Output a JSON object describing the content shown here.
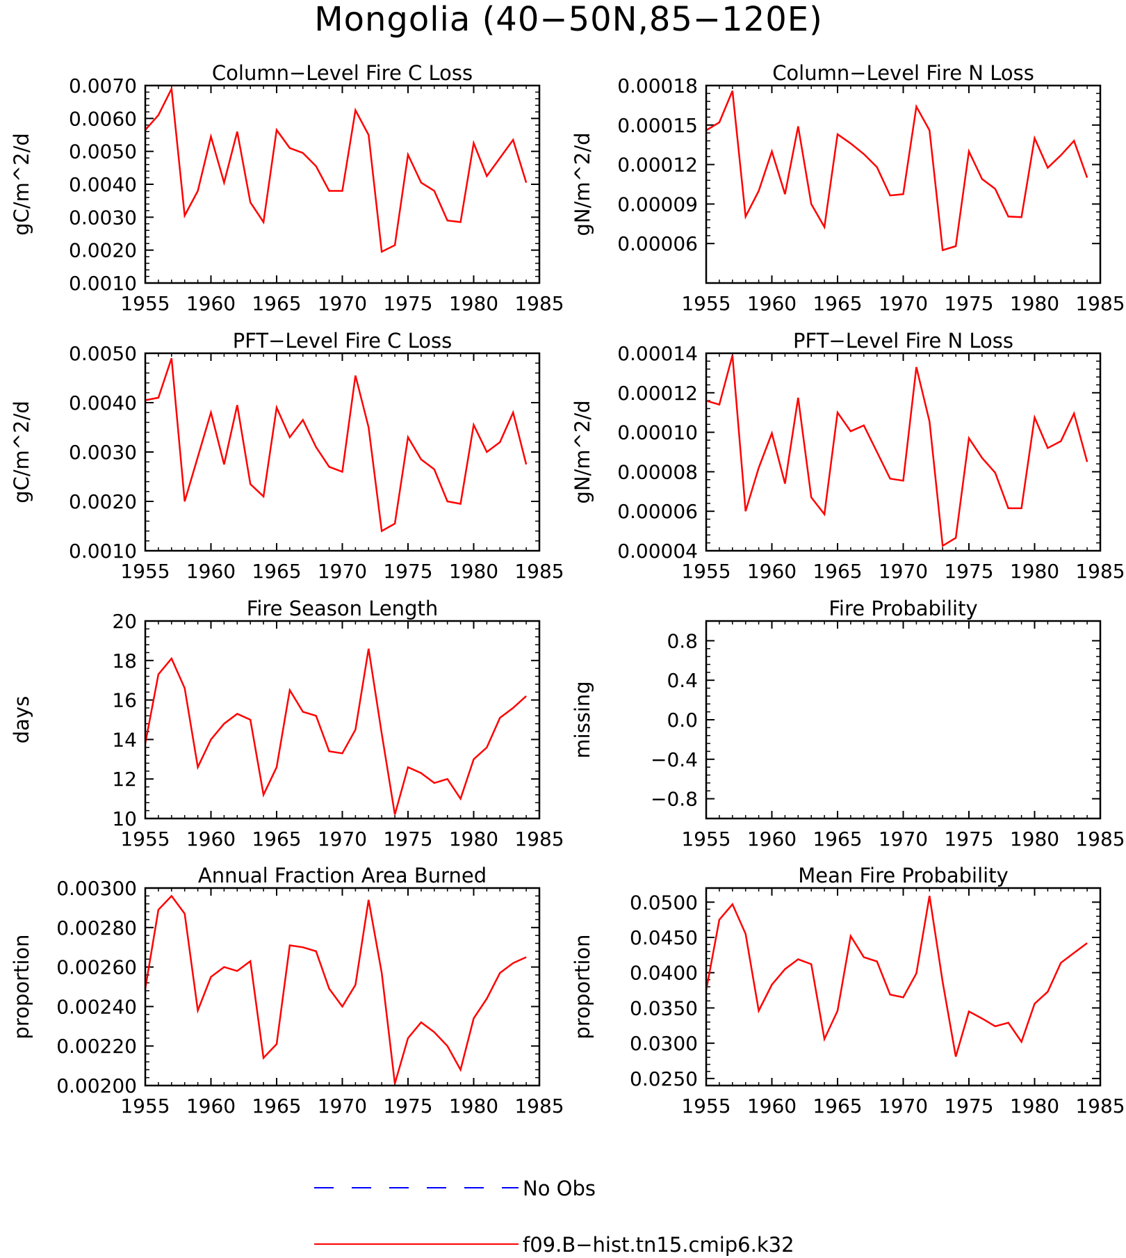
{
  "title": "Mongolia (40−50N,85−120E)",
  "colors": {
    "model": "#ff0000",
    "obs": "#0000ff",
    "axis": "#000000"
  },
  "legend": {
    "items": [
      {
        "label": "No Obs",
        "style": "dashed",
        "color": "#0000ff"
      },
      {
        "label": "f09.B−hist.tn15.cmip6.k32",
        "style": "solid",
        "color": "#ff0000"
      }
    ]
  },
  "chart_data": [
    {
      "type": "line",
      "title": "Column−Level Fire C Loss",
      "ylabel": "gC/m^2/d",
      "xlim": [
        1955,
        1985
      ],
      "ylim": [
        0.001,
        0.007
      ],
      "xticks": [
        1955,
        1960,
        1965,
        1970,
        1975,
        1980,
        1985
      ],
      "xticklabels": [
        "1955",
        "1960",
        "1965",
        "1970",
        "1975",
        "1980",
        "1985"
      ],
      "yticks": [
        0.001,
        0.002,
        0.003,
        0.004,
        0.005,
        0.006,
        0.007
      ],
      "yticklabels": [
        "0.0010",
        "0.0020",
        "0.0030",
        "0.0040",
        "0.0050",
        "0.0060",
        "0.0070"
      ],
      "x": [
        1955,
        1956,
        1957,
        1958,
        1959,
        1960,
        1961,
        1962,
        1963,
        1964,
        1965,
        1966,
        1967,
        1968,
        1969,
        1970,
        1971,
        1972,
        1973,
        1974,
        1975,
        1976,
        1977,
        1978,
        1979,
        1980,
        1981,
        1982,
        1983,
        1984
      ],
      "series": [
        {
          "values": [
            0.00565,
            0.0061,
            0.0069,
            0.00305,
            0.0038,
            0.00545,
            0.00405,
            0.0056,
            0.00345,
            0.00285,
            0.00565,
            0.0051,
            0.00495,
            0.00455,
            0.0038,
            0.0038,
            0.00625,
            0.0055,
            0.00195,
            0.00215,
            0.0049,
            0.00405,
            0.0038,
            0.0029,
            0.00285,
            0.00525,
            0.00425,
            0.0048,
            0.00535,
            0.00405
          ]
        }
      ]
    },
    {
      "type": "line",
      "title": "Column−Level Fire N Loss",
      "ylabel": "gN/m^2/d",
      "xlim": [
        1955,
        1985
      ],
      "ylim": [
        3e-05,
        0.00018
      ],
      "xticks": [
        1955,
        1960,
        1965,
        1970,
        1975,
        1980,
        1985
      ],
      "xticklabels": [
        "1955",
        "1960",
        "1965",
        "1970",
        "1975",
        "1980",
        "1985"
      ],
      "yticks": [
        6e-05,
        9e-05,
        0.00012,
        0.00015,
        0.00018
      ],
      "yticklabels": [
        "0.00006",
        "0.00009",
        "0.00012",
        "0.00015",
        "0.00018"
      ],
      "x": [
        1955,
        1956,
        1957,
        1958,
        1959,
        1960,
        1961,
        1962,
        1963,
        1964,
        1965,
        1966,
        1967,
        1968,
        1969,
        1970,
        1971,
        1972,
        1973,
        1974,
        1975,
        1976,
        1977,
        1978,
        1979,
        1980,
        1981,
        1982,
        1983,
        1984
      ],
      "series": [
        {
          "values": [
            0.000146,
            0.000152,
            0.000176,
            8.05e-05,
            0.0001,
            0.00013,
            9.75e-05,
            0.000149,
            9e-05,
            7.25e-05,
            0.000143,
            0.000136,
            0.000128,
            0.000118,
            9.65e-05,
            9.75e-05,
            0.000164,
            0.000146,
            5.5e-05,
            5.8e-05,
            0.00013,
            0.000109,
            0.0001015,
            8.05e-05,
            8e-05,
            0.00014,
            0.0001175,
            0.000127,
            0.000138,
            0.00011
          ]
        }
      ]
    },
    {
      "type": "line",
      "title": "PFT−Level Fire C Loss",
      "ylabel": "gC/m^2/d",
      "xlim": [
        1955,
        1985
      ],
      "ylim": [
        0.001,
        0.005
      ],
      "xticks": [
        1955,
        1960,
        1965,
        1970,
        1975,
        1980,
        1985
      ],
      "xticklabels": [
        "1955",
        "1960",
        "1965",
        "1970",
        "1975",
        "1980",
        "1985"
      ],
      "yticks": [
        0.001,
        0.002,
        0.003,
        0.004,
        0.005
      ],
      "yticklabels": [
        "0.0010",
        "0.0020",
        "0.0030",
        "0.0040",
        "0.0050"
      ],
      "x": [
        1955,
        1956,
        1957,
        1958,
        1959,
        1960,
        1961,
        1962,
        1963,
        1964,
        1965,
        1966,
        1967,
        1968,
        1969,
        1970,
        1971,
        1972,
        1973,
        1974,
        1975,
        1976,
        1977,
        1978,
        1979,
        1980,
        1981,
        1982,
        1983,
        1984
      ],
      "series": [
        {
          "values": [
            0.00405,
            0.0041,
            0.0049,
            0.002,
            0.0029,
            0.0038,
            0.00275,
            0.00395,
            0.00235,
            0.0021,
            0.0039,
            0.0033,
            0.00365,
            0.0031,
            0.0027,
            0.0026,
            0.00455,
            0.0035,
            0.0014,
            0.00155,
            0.0033,
            0.00285,
            0.00265,
            0.002,
            0.00195,
            0.00355,
            0.003,
            0.0032,
            0.0038,
            0.00275
          ]
        }
      ]
    },
    {
      "type": "line",
      "title": "PFT−Level Fire N Loss",
      "ylabel": "gN/m^2/d",
      "xlim": [
        1955,
        1985
      ],
      "ylim": [
        4e-05,
        0.00014
      ],
      "xticks": [
        1955,
        1960,
        1965,
        1970,
        1975,
        1980,
        1985
      ],
      "xticklabels": [
        "1955",
        "1960",
        "1965",
        "1970",
        "1975",
        "1980",
        "1985"
      ],
      "yticks": [
        4e-05,
        6e-05,
        8e-05,
        0.0001,
        0.00012,
        0.00014
      ],
      "yticklabels": [
        "0.00004",
        "0.00006",
        "0.00008",
        "0.00010",
        "0.00012",
        "0.00014"
      ],
      "x": [
        1955,
        1956,
        1957,
        1958,
        1959,
        1960,
        1961,
        1962,
        1963,
        1964,
        1965,
        1966,
        1967,
        1968,
        1969,
        1970,
        1971,
        1972,
        1973,
        1974,
        1975,
        1976,
        1977,
        1978,
        1979,
        1980,
        1981,
        1982,
        1983,
        1984
      ],
      "series": [
        {
          "values": [
            0.000116,
            0.000114,
            0.000139,
            6e-05,
            8.2e-05,
            9.95e-05,
            7.4e-05,
            0.0001175,
            6.7e-05,
            5.85e-05,
            0.00011,
            0.0001005,
            0.0001035,
            9e-05,
            7.65e-05,
            7.55e-05,
            0.000133,
            0.0001055,
            4.25e-05,
            4.65e-05,
            9.7e-05,
            8.7e-05,
            7.95e-05,
            6.15e-05,
            6.15e-05,
            0.0001075,
            9.2e-05,
            9.55e-05,
            0.0001095,
            8.5e-05
          ]
        }
      ]
    },
    {
      "type": "line",
      "title": "Fire Season Length",
      "ylabel": "days",
      "xlim": [
        1955,
        1985
      ],
      "ylim": [
        10,
        20
      ],
      "xticks": [
        1955,
        1960,
        1965,
        1970,
        1975,
        1980,
        1985
      ],
      "xticklabels": [
        "1955",
        "1960",
        "1965",
        "1970",
        "1975",
        "1980",
        "1985"
      ],
      "yticks": [
        10,
        12,
        14,
        16,
        18,
        20
      ],
      "yticklabels": [
        "10",
        "12",
        "14",
        "16",
        "18",
        "20"
      ],
      "x": [
        1955,
        1956,
        1957,
        1958,
        1959,
        1960,
        1961,
        1962,
        1963,
        1964,
        1965,
        1966,
        1967,
        1968,
        1969,
        1970,
        1971,
        1972,
        1973,
        1974,
        1975,
        1976,
        1977,
        1978,
        1979,
        1980,
        1981,
        1982,
        1983,
        1984
      ],
      "series": [
        {
          "values": [
            13.8,
            17.3,
            18.1,
            16.6,
            12.6,
            14.0,
            14.8,
            15.3,
            15.0,
            11.2,
            12.6,
            16.5,
            15.4,
            15.2,
            13.4,
            13.3,
            14.5,
            18.6,
            14.3,
            10.2,
            12.6,
            12.3,
            11.8,
            12.0,
            11.0,
            13.0,
            13.6,
            15.1,
            15.6,
            16.2
          ]
        }
      ]
    },
    {
      "type": "line",
      "title": "Fire Probability",
      "ylabel": "missing",
      "xlim": [
        1955,
        1985
      ],
      "ylim": [
        -1,
        1
      ],
      "xticks": [
        1955,
        1960,
        1965,
        1970,
        1975,
        1980,
        1985
      ],
      "xticklabels": [
        "1955",
        "1960",
        "1965",
        "1970",
        "1975",
        "1980",
        "1985"
      ],
      "yticks": [
        -0.8,
        -0.4,
        0.0,
        0.4,
        0.8
      ],
      "yticklabels": [
        "−0.8",
        "−0.4",
        "0.0",
        "0.4",
        "0.8"
      ],
      "x": [],
      "series": []
    },
    {
      "type": "line",
      "title": "Annual Fraction Area Burned",
      "ylabel": "proportion",
      "xlim": [
        1955,
        1985
      ],
      "ylim": [
        0.002,
        0.003
      ],
      "xticks": [
        1955,
        1960,
        1965,
        1970,
        1975,
        1980,
        1985
      ],
      "xticklabels": [
        "1955",
        "1960",
        "1965",
        "1970",
        "1975",
        "1980",
        "1985"
      ],
      "yticks": [
        0.002,
        0.0022,
        0.0024,
        0.0026,
        0.0028,
        0.003
      ],
      "yticklabels": [
        "0.00200",
        "0.00220",
        "0.00240",
        "0.00260",
        "0.00280",
        "0.00300"
      ],
      "x": [
        1955,
        1956,
        1957,
        1958,
        1959,
        1960,
        1961,
        1962,
        1963,
        1964,
        1965,
        1966,
        1967,
        1968,
        1969,
        1970,
        1971,
        1972,
        1973,
        1974,
        1975,
        1976,
        1977,
        1978,
        1979,
        1980,
        1981,
        1982,
        1983,
        1984
      ],
      "series": [
        {
          "values": [
            0.00249,
            0.00289,
            0.00296,
            0.00287,
            0.00238,
            0.00255,
            0.0026,
            0.00258,
            0.00263,
            0.00214,
            0.00221,
            0.00271,
            0.0027,
            0.00268,
            0.00249,
            0.0024,
            0.00251,
            0.00294,
            0.00257,
            0.00201,
            0.00224,
            0.00232,
            0.00227,
            0.0022,
            0.00208,
            0.00234,
            0.00244,
            0.00257,
            0.00262,
            0.00265
          ]
        }
      ]
    },
    {
      "type": "line",
      "title": "Mean Fire Probability",
      "ylabel": "proportion",
      "xlim": [
        1955,
        1985
      ],
      "ylim": [
        0.024,
        0.052
      ],
      "xticks": [
        1955,
        1960,
        1965,
        1970,
        1975,
        1980,
        1985
      ],
      "xticklabels": [
        "1955",
        "1960",
        "1965",
        "1970",
        "1975",
        "1980",
        "1985"
      ],
      "yticks": [
        0.025,
        0.03,
        0.035,
        0.04,
        0.045,
        0.05
      ],
      "yticklabels": [
        "0.0250",
        "0.0300",
        "0.0350",
        "0.0400",
        "0.0450",
        "0.0500"
      ],
      "x": [
        1955,
        1956,
        1957,
        1958,
        1959,
        1960,
        1961,
        1962,
        1963,
        1964,
        1965,
        1966,
        1967,
        1968,
        1969,
        1970,
        1971,
        1972,
        1973,
        1974,
        1975,
        1976,
        1977,
        1978,
        1979,
        1980,
        1981,
        1982,
        1983,
        1984
      ],
      "series": [
        {
          "values": [
            0.0375,
            0.0475,
            0.0497,
            0.0455,
            0.0346,
            0.0383,
            0.0405,
            0.0419,
            0.0412,
            0.0306,
            0.0346,
            0.0452,
            0.0422,
            0.0416,
            0.0369,
            0.0365,
            0.0399,
            0.0509,
            0.0387,
            0.0281,
            0.0345,
            0.0335,
            0.0324,
            0.0329,
            0.0302,
            0.0356,
            0.0373,
            0.0414,
            0.0428,
            0.0442
          ]
        }
      ]
    }
  ]
}
